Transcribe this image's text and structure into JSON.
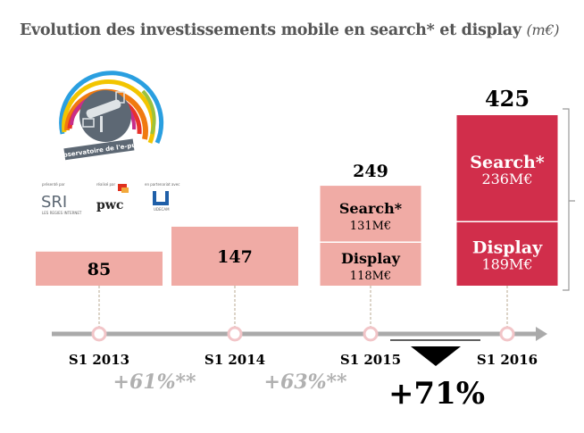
{
  "title": {
    "main": "Evolution des investissements mobile en search* et display",
    "unit": "(m€)"
  },
  "logo": {
    "text": "Observatoire de l'e-pub",
    "presented_by": "présenté par",
    "sri": "SRI",
    "sri_sub": "LES REGIES INTERNET",
    "made_by": "réalisé par",
    "pwc": "pwc",
    "partner": "en partenariat avec",
    "udecam": "UDECAM"
  },
  "colors": {
    "past": "#f0aba5",
    "current": "#d12e4b",
    "axis": "#aaaaaa",
    "marker": "#f2c5c8",
    "growth": "#b0b0b0"
  },
  "chart_data": {
    "type": "bar",
    "categories": [
      "S1 2013",
      "S1 2014",
      "S1 2015",
      "S1 2016"
    ],
    "totals": [
      85,
      147,
      249,
      425
    ],
    "total_labels": [
      "85",
      "147",
      "249",
      "425"
    ],
    "series": [
      {
        "name": "Display",
        "values": [
          null,
          null,
          118,
          189
        ],
        "labels": [
          "",
          "",
          "118M€",
          "189M€"
        ]
      },
      {
        "name": "Search*",
        "values": [
          null,
          null,
          131,
          236
        ],
        "labels": [
          "",
          "",
          "131M€",
          "236M€"
        ]
      }
    ],
    "growth": [
      {
        "from": "S1 2013",
        "to": "S1 2014",
        "label": "+61%**"
      },
      {
        "from": "S1 2014",
        "to": "S1 2015",
        "label": "+63%**"
      },
      {
        "from": "S1 2015",
        "to": "S1 2016",
        "label": "+71%"
      }
    ]
  }
}
